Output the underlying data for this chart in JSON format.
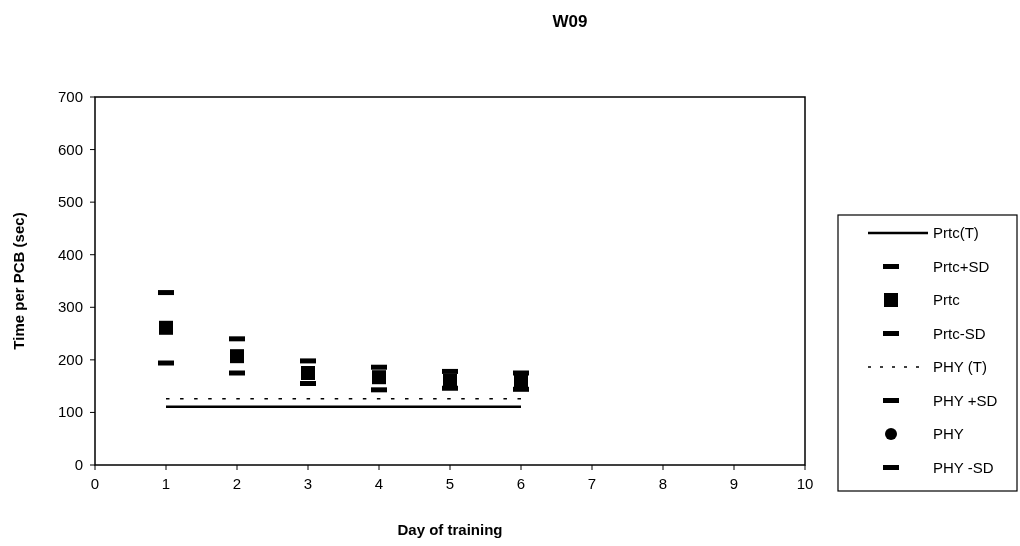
{
  "chart_data": {
    "type": "scatter",
    "title": "W09",
    "xlabel": "Day of training",
    "ylabel": "Time per PCB (sec)",
    "xlim": [
      0,
      10
    ],
    "xticks": [
      0,
      1,
      2,
      3,
      4,
      5,
      6,
      7,
      8,
      9,
      10
    ],
    "ylim": [
      0,
      700
    ],
    "yticks": [
      0,
      100,
      200,
      300,
      400,
      500,
      600,
      700
    ],
    "grid": false,
    "legend": "right",
    "x": [
      1,
      2,
      3,
      4,
      5,
      6
    ],
    "series": [
      {
        "name": "Prtc(T)",
        "type": "line",
        "color": "#000000",
        "line_style": "solid",
        "marker": "none",
        "values": [
          111,
          111,
          111,
          111,
          111,
          111
        ]
      },
      {
        "name": "Prtc+SD",
        "color": "#000000",
        "values": [
          328,
          240,
          198,
          186,
          178,
          175
        ]
      },
      {
        "name": "Prtc",
        "color": "#000000",
        "marker": "square",
        "values": [
          261,
          207,
          175,
          167,
          160,
          158
        ]
      },
      {
        "name": "Prtc-SD",
        "color": "#000000",
        "values": [
          194,
          175,
          155,
          143,
          146,
          144
        ]
      },
      {
        "name": "PHY (T)",
        "type": "line",
        "color": "#000000",
        "line_style": "dotted",
        "marker": "none",
        "values": [
          126,
          126,
          126,
          126,
          126,
          126
        ]
      },
      {
        "name": "PHY +SD",
        "color": "#000000",
        "values": [
          null,
          null,
          null,
          null,
          null,
          null
        ]
      },
      {
        "name": "PHY",
        "color": "#000000",
        "marker": "circle",
        "values": [
          null,
          null,
          null,
          null,
          null,
          null
        ]
      },
      {
        "name": "PHY -SD",
        "color": "#000000",
        "values": [
          null,
          null,
          null,
          null,
          null,
          null
        ]
      }
    ]
  }
}
